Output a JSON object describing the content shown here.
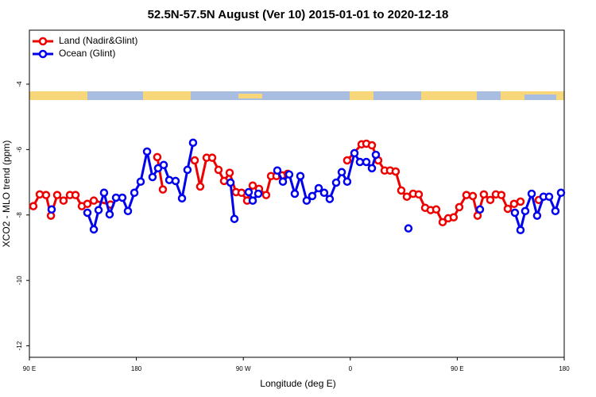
{
  "chart_data": {
    "type": "line",
    "title": "52.5N-57.5N August (Ver 10)   2015-01-01 to 2020-12-18",
    "x_label": "Longitude (deg E)",
    "y_label": "XCO2 - MLO trend (ppm)",
    "xlim": [
      90,
      540
    ],
    "ylim": [
      -12.35,
      -2.35
    ],
    "xticks": [
      {
        "value": 90,
        "label": "90 E"
      },
      180,
      {
        "value": 270,
        "label": "90 W"
      },
      {
        "value": 360,
        "label": "0"
      },
      {
        "value": 450,
        "label": "90 E"
      },
      {
        "value": 540,
        "label": "180"
      }
    ],
    "yticks": [
      -4,
      -6,
      -8,
      -10,
      -12
    ],
    "legend": "top-left",
    "series": [
      {
        "name": "Land (Nadir&Glint)",
        "color": "#ee0000",
        "x": [
          93.3,
          98.7,
          104.0,
          108.1,
          113.4,
          118.7,
          124.1,
          128.8,
          134.1,
          138.8,
          144.2,
          158.2,
          null,
          197.6,
          202.3,
          null,
          229.1,
          233.7,
          239.1,
          243.8,
          249.1,
          253.8,
          258.5,
          263.8,
          268.5,
          273.2,
          277.9,
          283.2,
          289.2,
          293.3,
          297.9,
          302.6,
          307.3,
          null,
          357.4,
          369.5,
          373.5,
          378.2,
          383.5,
          388.9,
          393.5,
          398.2,
          402.9,
          407.6,
          412.9,
          417.6,
          423.0,
          427.6,
          432.3,
          437.7,
          442.4,
          447.0,
          451.7,
          457.7,
          463.1,
          467.1,
          472.4,
          477.8,
          482.5,
          487.1,
          492.5,
          497.8,
          503.2,
          null,
          518.6
        ],
        "values": [
          -7.73,
          -7.37,
          -7.39,
          -8.02,
          -7.39,
          -7.56,
          -7.39,
          -7.39,
          -7.73,
          -7.66,
          -7.56,
          -7.68,
          null,
          -6.23,
          -7.22,
          null,
          -6.33,
          -7.13,
          -6.25,
          -6.25,
          -6.62,
          -6.96,
          -6.71,
          -7.3,
          -7.32,
          -7.56,
          -7.1,
          -7.2,
          -7.39,
          -6.81,
          -6.81,
          -6.79,
          -6.74,
          null,
          -6.33,
          -5.84,
          -5.82,
          -5.87,
          -6.33,
          -6.64,
          -6.64,
          -6.67,
          -7.25,
          -7.44,
          -7.35,
          -7.37,
          -7.78,
          -7.85,
          -7.83,
          -8.22,
          -8.1,
          -8.07,
          -7.76,
          -7.39,
          -7.42,
          -8.02,
          -7.37,
          -7.54,
          -7.37,
          -7.39,
          -7.81,
          -7.66,
          -7.59,
          null,
          -7.54
        ]
      },
      {
        "name": "Ocean (Glint)",
        "color": "#0000ee",
        "x": [
          108.7,
          null,
          138.8,
          144.2,
          148.2,
          152.8,
          157.5,
          162.9,
          168.2,
          172.9,
          178.3,
          183.6,
          189.0,
          193.6,
          198.3,
          203.0,
          207.7,
          213.0,
          218.4,
          223.0,
          227.7,
          null,
          259.2,
          262.5,
          null,
          274.5,
          277.9,
          282.6,
          null,
          298.6,
          303.3,
          308.6,
          313.3,
          318.0,
          323.3,
          328.0,
          333.4,
          338.0,
          342.7,
          348.1,
          352.8,
          357.4,
          363.5,
          368.1,
          373.5,
          378.2,
          381.5,
          null,
          408.9,
          null,
          469.1,
          null,
          498.5,
          503.2,
          507.2,
          512.6,
          517.2,
          522.6,
          527.3,
          532.6,
          537.3
        ],
        "values": [
          -7.83,
          null,
          -7.93,
          -8.44,
          -7.85,
          -7.32,
          -7.98,
          -7.47,
          -7.47,
          -7.88,
          -7.32,
          -6.98,
          -6.06,
          -6.84,
          -6.57,
          -6.47,
          -6.93,
          -6.96,
          -7.49,
          -6.62,
          -5.79,
          null,
          -7.01,
          -8.12,
          null,
          -7.3,
          -7.56,
          -7.35,
          null,
          -6.64,
          -6.98,
          -6.76,
          -7.35,
          -6.81,
          -7.56,
          -7.42,
          -7.18,
          -7.32,
          -7.51,
          -7.01,
          -6.69,
          -6.98,
          -6.11,
          -6.38,
          -6.38,
          -6.57,
          -6.16,
          null,
          -8.41,
          null,
          -7.83,
          null,
          -7.93,
          -8.46,
          -7.88,
          -7.35,
          -8.02,
          -7.44,
          -7.44,
          -7.88,
          -7.32
        ]
      }
    ]
  }
}
